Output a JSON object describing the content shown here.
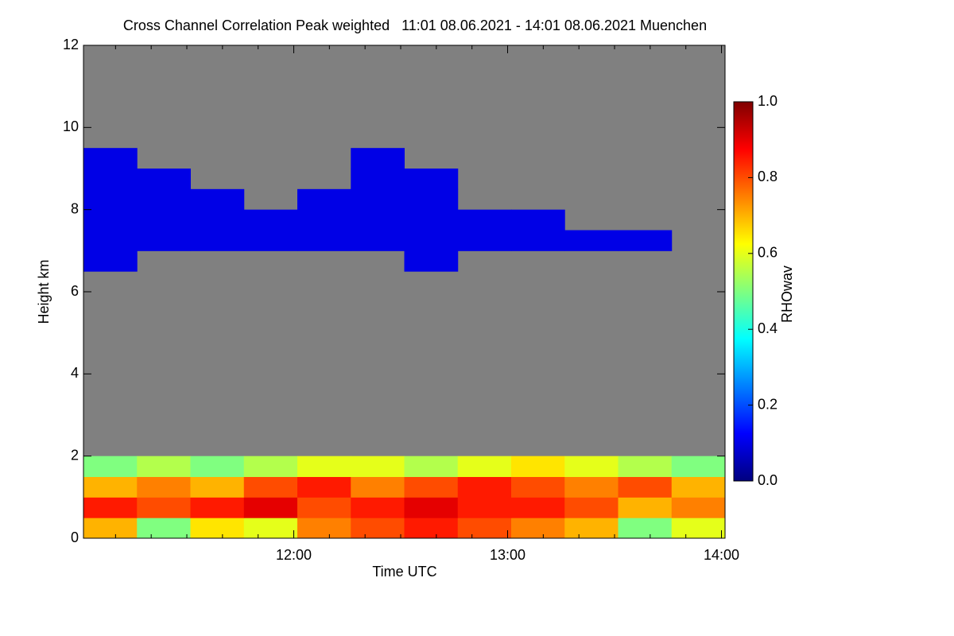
{
  "chart_data": {
    "type": "heatmap",
    "title": "Cross Channel Correlation Peak weighted   11:01 08.06.2021 - 14:01 08.06.2021 Muenchen",
    "xlabel": "Time UTC",
    "ylabel": "Height km",
    "colorbar_label": "RHOwav",
    "xlim": [
      661,
      841
    ],
    "ylim": [
      0,
      12
    ],
    "xticks": [
      {
        "value": 720,
        "label": "12:00"
      },
      {
        "value": 780,
        "label": "13:00"
      },
      {
        "value": 840,
        "label": "14:00"
      }
    ],
    "xminor_ticks": [
      670,
      680,
      690,
      700,
      710,
      730,
      740,
      750,
      760,
      770,
      790,
      800,
      810,
      820,
      830
    ],
    "yticks": [
      0,
      2,
      4,
      6,
      8,
      10,
      12
    ],
    "clim": [
      0,
      1
    ],
    "cticks": [
      {
        "value": 0,
        "label": "0.0"
      },
      {
        "value": 0.2,
        "label": "0.2"
      },
      {
        "value": 0.4,
        "label": "0.4"
      },
      {
        "value": 0.6,
        "label": "0.6"
      },
      {
        "value": 0.8,
        "label": "0.8"
      },
      {
        "value": 1,
        "label": "1.0"
      }
    ],
    "colormap": "jet",
    "missing_color": "#808080",
    "x_bins": [
      661,
      676,
      691,
      706,
      721,
      736,
      751,
      766,
      781,
      796,
      811,
      826,
      841
    ],
    "y_bins": [
      0,
      0.5,
      1,
      1.5,
      2,
      2.5,
      3,
      3.5,
      4,
      4.5,
      5,
      5.5,
      6,
      6.5,
      7,
      7.5,
      8,
      8.5,
      9,
      9.5,
      10,
      10.5,
      11,
      11.5,
      12
    ],
    "z": [
      [
        0.7,
        0.5,
        0.65,
        0.6,
        0.75,
        0.8,
        0.85,
        0.8,
        0.75,
        0.7,
        0.5,
        0.6
      ],
      [
        0.85,
        0.8,
        0.85,
        0.9,
        0.8,
        0.85,
        0.9,
        0.85,
        0.85,
        0.8,
        0.7,
        0.75
      ],
      [
        0.7,
        0.75,
        0.7,
        0.8,
        0.85,
        0.75,
        0.8,
        0.85,
        0.8,
        0.75,
        0.8,
        0.7
      ],
      [
        0.5,
        0.55,
        0.5,
        0.55,
        0.6,
        0.6,
        0.55,
        0.6,
        0.65,
        0.6,
        0.55,
        0.5
      ],
      [
        null,
        null,
        null,
        null,
        null,
        null,
        null,
        null,
        null,
        null,
        null,
        null
      ],
      [
        null,
        null,
        null,
        null,
        null,
        null,
        null,
        null,
        null,
        null,
        null,
        null
      ],
      [
        null,
        null,
        null,
        null,
        null,
        null,
        null,
        null,
        null,
        null,
        null,
        null
      ],
      [
        null,
        null,
        null,
        null,
        null,
        null,
        null,
        null,
        null,
        null,
        null,
        null
      ],
      [
        null,
        null,
        null,
        null,
        null,
        null,
        null,
        null,
        null,
        null,
        null,
        null
      ],
      [
        null,
        null,
        null,
        null,
        null,
        null,
        null,
        null,
        null,
        null,
        null,
        null
      ],
      [
        null,
        null,
        null,
        null,
        null,
        null,
        null,
        null,
        null,
        null,
        null,
        null
      ],
      [
        null,
        null,
        null,
        null,
        null,
        null,
        null,
        null,
        null,
        null,
        null,
        null
      ],
      [
        null,
        null,
        null,
        null,
        null,
        null,
        null,
        null,
        null,
        null,
        null,
        null
      ],
      [
        0.1,
        null,
        null,
        null,
        null,
        null,
        0.1,
        null,
        null,
        null,
        null,
        null
      ],
      [
        0.1,
        0.1,
        0.1,
        0.1,
        0.1,
        0.1,
        0.1,
        0.1,
        0.1,
        0.1,
        0.1,
        null
      ],
      [
        0.1,
        0.1,
        0.1,
        0.1,
        0.1,
        0.1,
        0.1,
        0.1,
        0.1,
        null,
        null,
        null
      ],
      [
        0.1,
        0.1,
        0.1,
        null,
        0.1,
        0.1,
        0.1,
        null,
        null,
        null,
        null,
        null
      ],
      [
        0.1,
        0.1,
        null,
        null,
        null,
        0.1,
        0.1,
        null,
        null,
        null,
        null,
        null
      ],
      [
        0.1,
        null,
        null,
        null,
        null,
        0.1,
        null,
        null,
        null,
        null,
        null,
        null
      ],
      [
        null,
        null,
        null,
        null,
        null,
        null,
        null,
        null,
        null,
        null,
        null,
        null
      ],
      [
        null,
        null,
        null,
        null,
        null,
        null,
        null,
        null,
        null,
        null,
        null,
        null
      ],
      [
        null,
        null,
        null,
        null,
        null,
        null,
        null,
        null,
        null,
        null,
        null,
        null
      ],
      [
        null,
        null,
        null,
        null,
        null,
        null,
        null,
        null,
        null,
        null,
        null,
        null
      ],
      [
        null,
        null,
        null,
        null,
        null,
        null,
        null,
        null,
        null,
        null,
        null,
        null
      ]
    ]
  }
}
